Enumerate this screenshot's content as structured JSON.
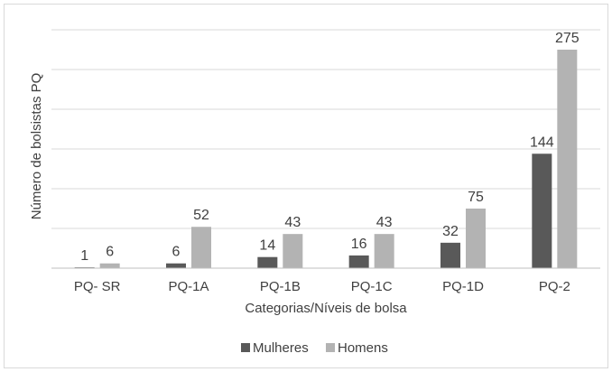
{
  "chart_data": {
    "type": "bar",
    "title": "",
    "xlabel": "Categorias/Níveis de bolsa",
    "ylabel": "Número de bolsistas PQ",
    "categories": [
      "PQ- SR",
      "PQ-1A",
      "PQ-1B",
      "PQ-1C",
      "PQ-1D",
      "PQ-2"
    ],
    "series": [
      {
        "name": "Mulheres",
        "values": [
          1,
          6,
          14,
          16,
          32,
          144
        ],
        "color": "#595959"
      },
      {
        "name": "Homens",
        "values": [
          6,
          52,
          43,
          43,
          75,
          275
        ],
        "color": "#b3b3b3"
      }
    ],
    "ylim": [
      0,
      275
    ],
    "y_tick_labels_shown": false,
    "grid": true,
    "legend_position": "bottom"
  }
}
